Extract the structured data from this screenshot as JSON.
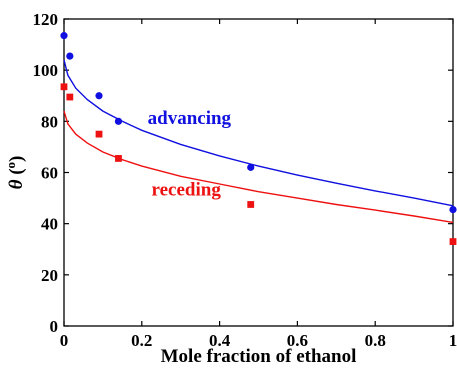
{
  "chart_data": {
    "type": "scatter",
    "title": "",
    "xlabel": "Mole fraction of ethanol",
    "ylabel_symbol": "θ",
    "ylabel_unit": "o",
    "xlim": [
      0,
      1
    ],
    "ylim": [
      0,
      120
    ],
    "x_ticks": [
      0,
      0.2,
      0.4,
      0.6,
      0.8,
      1
    ],
    "x_tick_labels": [
      "0",
      "0.2",
      "0.4",
      "0.6",
      "0.8",
      "1"
    ],
    "y_ticks": [
      0,
      20,
      40,
      60,
      80,
      100,
      120
    ],
    "y_tick_labels": [
      "0",
      "20",
      "40",
      "60",
      "80",
      "100",
      "120"
    ],
    "grid": false,
    "series": [
      {
        "name": "advancing",
        "color": "#1010e0",
        "marker": "circle",
        "points": [
          [
            0.0,
            113.5
          ],
          [
            0.015,
            105.5
          ],
          [
            0.09,
            90.0
          ],
          [
            0.14,
            80.0
          ],
          [
            0.48,
            62.0
          ],
          [
            1.0,
            45.5
          ]
        ],
        "fit": [
          [
            0.0,
            104.0
          ],
          [
            0.01,
            98.0
          ],
          [
            0.03,
            93.0
          ],
          [
            0.06,
            88.5
          ],
          [
            0.1,
            84.0
          ],
          [
            0.15,
            80.0
          ],
          [
            0.2,
            76.5
          ],
          [
            0.3,
            71.0
          ],
          [
            0.4,
            66.5
          ],
          [
            0.5,
            62.5
          ],
          [
            0.6,
            59.0
          ],
          [
            0.7,
            55.8
          ],
          [
            0.8,
            52.8
          ],
          [
            0.9,
            50.0
          ],
          [
            1.0,
            47.0
          ]
        ]
      },
      {
        "name": "receding",
        "color": "#ee1111",
        "marker": "square",
        "points": [
          [
            0.0,
            93.5
          ],
          [
            0.015,
            89.5
          ],
          [
            0.09,
            75.0
          ],
          [
            0.14,
            65.5
          ],
          [
            0.48,
            47.5
          ],
          [
            1.0,
            33.0
          ]
        ],
        "fit": [
          [
            0.0,
            84.0
          ],
          [
            0.01,
            79.0
          ],
          [
            0.03,
            75.0
          ],
          [
            0.06,
            71.5
          ],
          [
            0.1,
            68.0
          ],
          [
            0.15,
            65.0
          ],
          [
            0.2,
            62.5
          ],
          [
            0.3,
            58.5
          ],
          [
            0.4,
            55.5
          ],
          [
            0.5,
            52.5
          ],
          [
            0.6,
            50.0
          ],
          [
            0.7,
            47.5
          ],
          [
            0.8,
            45.3
          ],
          [
            0.9,
            43.0
          ],
          [
            1.0,
            40.5
          ]
        ]
      }
    ],
    "annotations": [
      {
        "text": "advancing",
        "x": 0.215,
        "y": 79,
        "color": "#1010e0"
      },
      {
        "text": "receding",
        "x": 0.225,
        "y": 51,
        "color": "#ee1111"
      }
    ]
  }
}
